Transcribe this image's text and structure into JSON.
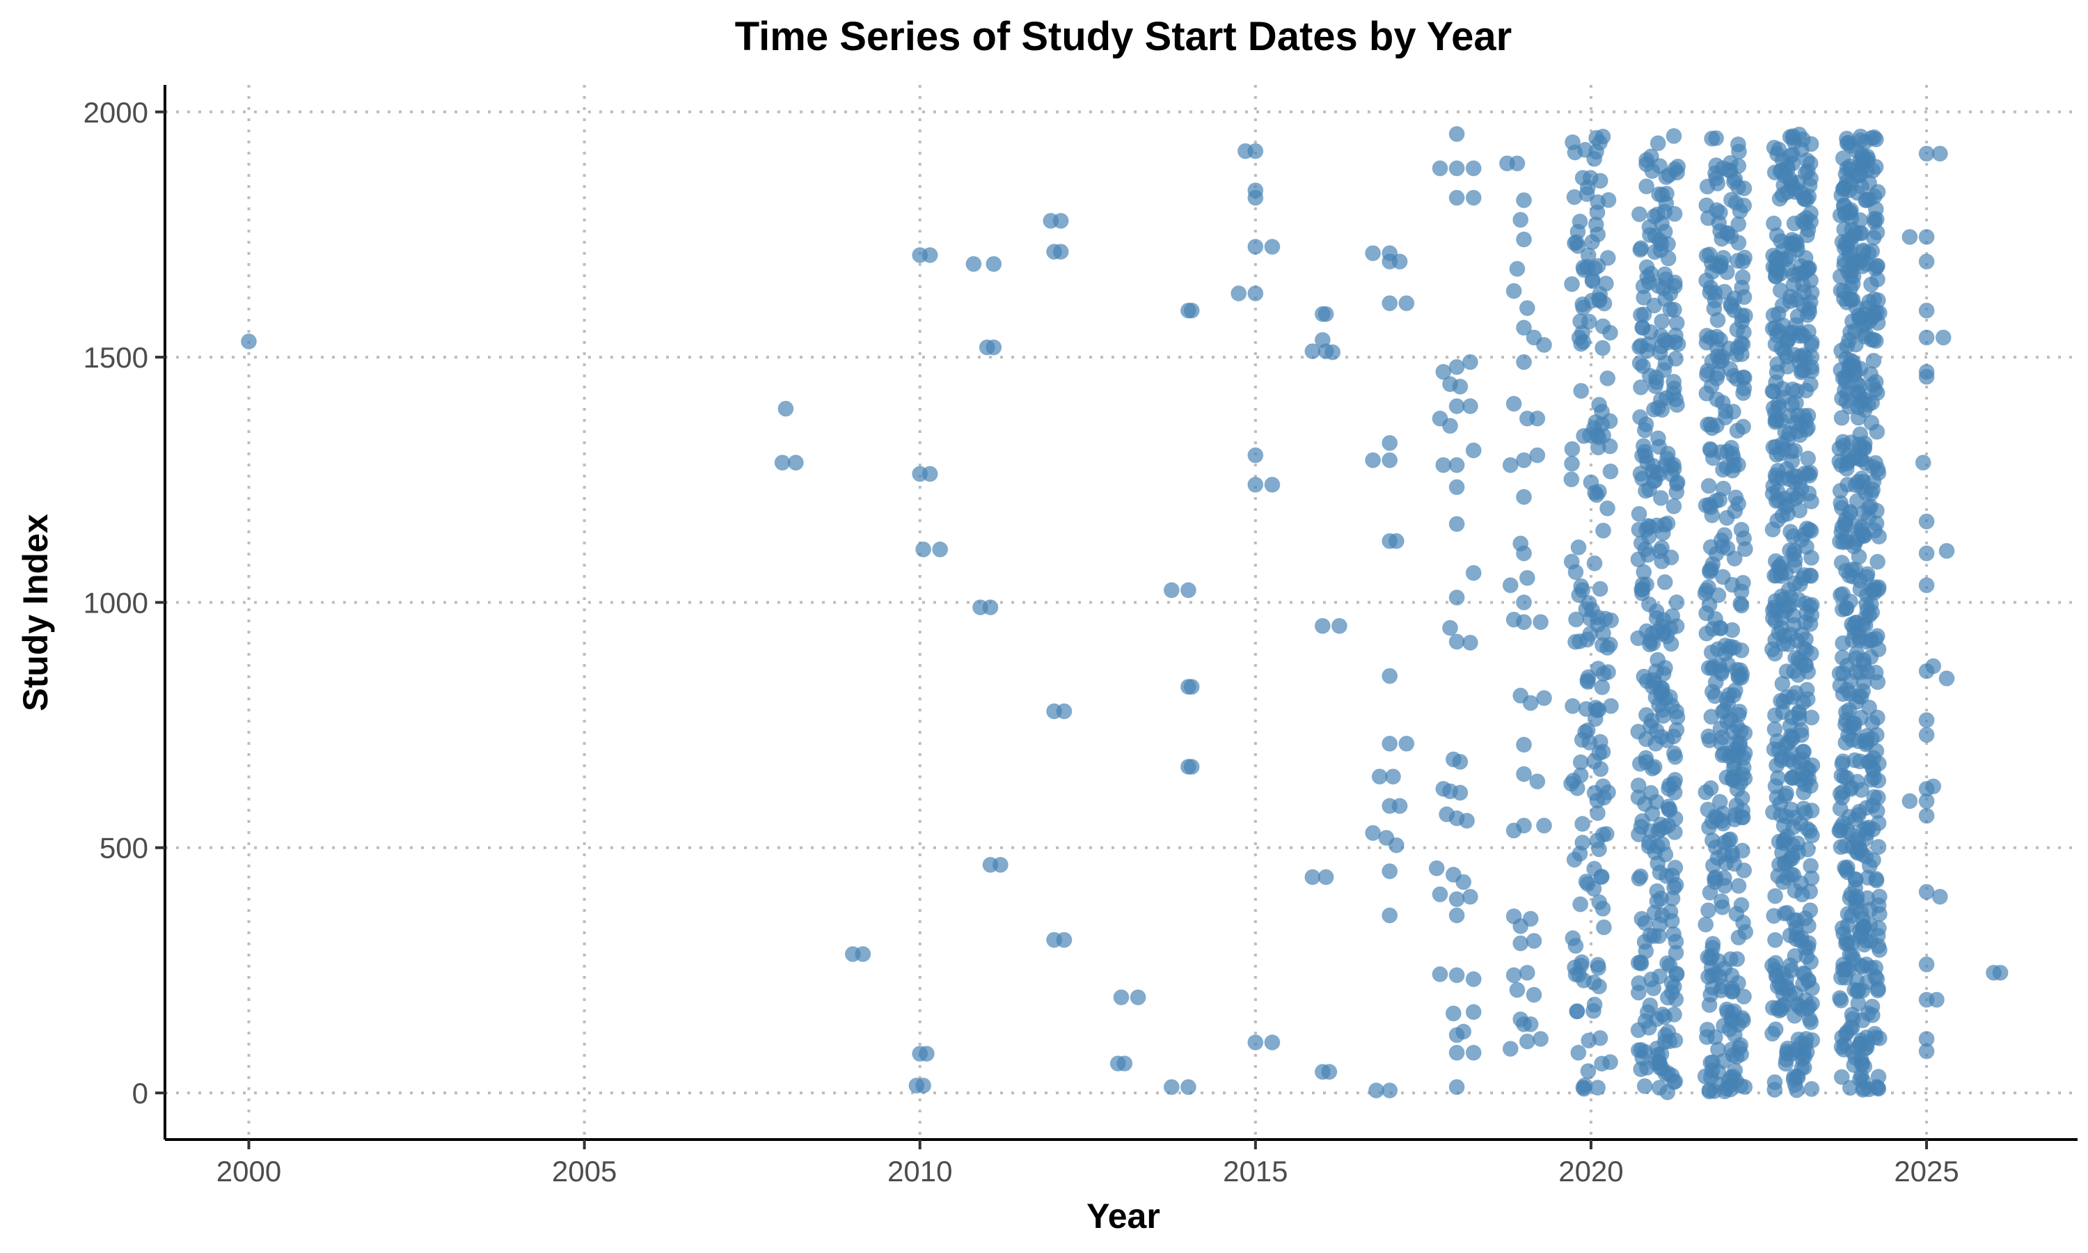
{
  "chart_data": {
    "type": "scatter",
    "title": "Time Series of Study Start Dates by Year",
    "xlabel": "Year",
    "ylabel": "Study Index",
    "xlim": [
      1998.75,
      2027.25
    ],
    "ylim": [
      -95,
      2055
    ],
    "xticks": [
      "2000",
      "2005",
      "2010",
      "2015",
      "2020",
      "2025"
    ],
    "yticks": [
      "0",
      "500",
      "1000",
      "1500",
      "2000"
    ],
    "grid": "major, dotted",
    "legend": "none",
    "marker_color": "#4682B4",
    "points": [
      [
        2000.0,
        1532
      ],
      [
        2008.0,
        1395
      ],
      [
        2007.95,
        1285
      ],
      [
        2008.15,
        1285
      ],
      [
        2009.0,
        283
      ],
      [
        2009.15,
        283
      ],
      [
        2010.0,
        1708
      ],
      [
        2010.15,
        1708
      ],
      [
        2010.0,
        1262
      ],
      [
        2010.15,
        1262
      ],
      [
        2010.05,
        1108
      ],
      [
        2010.3,
        1108
      ],
      [
        2010.0,
        80
      ],
      [
        2010.1,
        80
      ],
      [
        2009.95,
        15
      ],
      [
        2010.05,
        15
      ],
      [
        2010.8,
        1690
      ],
      [
        2011.1,
        1690
      ],
      [
        2011.0,
        1520
      ],
      [
        2011.1,
        1520
      ],
      [
        2010.9,
        990
      ],
      [
        2011.05,
        990
      ],
      [
        2011.05,
        465
      ],
      [
        2011.2,
        465
      ],
      [
        2011.95,
        1778
      ],
      [
        2012.1,
        1778
      ],
      [
        2012.0,
        1715
      ],
      [
        2012.1,
        1715
      ],
      [
        2012.0,
        778
      ],
      [
        2012.15,
        778
      ],
      [
        2012.0,
        312
      ],
      [
        2012.15,
        312
      ],
      [
        2013.0,
        195
      ],
      [
        2013.25,
        195
      ],
      [
        2012.95,
        60
      ],
      [
        2013.05,
        60
      ],
      [
        2013.75,
        1025
      ],
      [
        2014.0,
        1025
      ],
      [
        2014.0,
        1595
      ],
      [
        2014.05,
        1595
      ],
      [
        2014.0,
        828
      ],
      [
        2014.05,
        828
      ],
      [
        2014.0,
        665
      ],
      [
        2014.05,
        665
      ],
      [
        2013.75,
        12
      ],
      [
        2014.0,
        12
      ],
      [
        2014.85,
        1920
      ],
      [
        2015.0,
        1920
      ],
      [
        2015.0,
        1840
      ],
      [
        2015.0,
        1825
      ],
      [
        2015.0,
        1725
      ],
      [
        2015.25,
        1725
      ],
      [
        2014.75,
        1630
      ],
      [
        2015.0,
        1630
      ],
      [
        2015.0,
        1300
      ],
      [
        2015.0,
        1240
      ],
      [
        2015.25,
        1240
      ],
      [
        2015.0,
        103
      ],
      [
        2015.25,
        103
      ],
      [
        2016.0,
        1588
      ],
      [
        2016.05,
        1588
      ],
      [
        2016.0,
        1535
      ],
      [
        2015.85,
        1512
      ],
      [
        2016.05,
        1512
      ],
      [
        2016.15,
        1510
      ],
      [
        2016.0,
        952
      ],
      [
        2016.25,
        952
      ],
      [
        2015.85,
        440
      ],
      [
        2016.05,
        440
      ],
      [
        2016.0,
        43
      ],
      [
        2016.1,
        43
      ],
      [
        2016.75,
        1712
      ],
      [
        2017.0,
        1712
      ],
      [
        2017.0,
        1695
      ],
      [
        2017.15,
        1695
      ],
      [
        2017.0,
        1610
      ],
      [
        2017.25,
        1610
      ],
      [
        2017.0,
        1325
      ],
      [
        2016.75,
        1290
      ],
      [
        2017.0,
        1290
      ],
      [
        2017.0,
        1125
      ],
      [
        2017.1,
        1125
      ],
      [
        2017.0,
        850
      ],
      [
        2017.0,
        712
      ],
      [
        2017.25,
        712
      ],
      [
        2016.85,
        645
      ],
      [
        2017.05,
        645
      ],
      [
        2017.0,
        585
      ],
      [
        2017.15,
        585
      ],
      [
        2016.75,
        530
      ],
      [
        2016.95,
        520
      ],
      [
        2017.1,
        505
      ],
      [
        2017.0,
        452
      ],
      [
        2017.0,
        362
      ],
      [
        2016.8,
        5
      ],
      [
        2017.0,
        5
      ],
      [
        2017.75,
        1885
      ],
      [
        2018.0,
        1955
      ],
      [
        2018.0,
        1885
      ],
      [
        2018.25,
        1885
      ],
      [
        2018.0,
        1825
      ],
      [
        2018.25,
        1825
      ],
      [
        2018.0,
        1480
      ],
      [
        2017.8,
        1470
      ],
      [
        2017.9,
        1445
      ],
      [
        2018.05,
        1440
      ],
      [
        2018.2,
        1490
      ],
      [
        2017.75,
        1375
      ],
      [
        2017.9,
        1360
      ],
      [
        2018.0,
        1400
      ],
      [
        2018.2,
        1400
      ],
      [
        2018.0,
        1280
      ],
      [
        2017.8,
        1280
      ],
      [
        2018.25,
        1310
      ],
      [
        2018.0,
        1235
      ],
      [
        2018.0,
        1160
      ],
      [
        2018.0,
        1010
      ],
      [
        2018.25,
        1060
      ],
      [
        2017.9,
        948
      ],
      [
        2018.0,
        920
      ],
      [
        2018.2,
        918
      ],
      [
        2017.95,
        680
      ],
      [
        2018.05,
        675
      ],
      [
        2017.8,
        620
      ],
      [
        2017.9,
        615
      ],
      [
        2018.05,
        612
      ],
      [
        2017.85,
        568
      ],
      [
        2018.0,
        560
      ],
      [
        2018.15,
        555
      ],
      [
        2017.7,
        458
      ],
      [
        2017.95,
        445
      ],
      [
        2018.1,
        430
      ],
      [
        2017.75,
        405
      ],
      [
        2018.0,
        395
      ],
      [
        2018.2,
        400
      ],
      [
        2018.0,
        362
      ],
      [
        2017.75,
        242
      ],
      [
        2018.0,
        240
      ],
      [
        2018.25,
        232
      ],
      [
        2017.95,
        162
      ],
      [
        2018.0,
        118
      ],
      [
        2018.1,
        125
      ],
      [
        2018.25,
        165
      ],
      [
        2018.0,
        82
      ],
      [
        2018.25,
        82
      ],
      [
        2018.0,
        12
      ],
      [
        2018.75,
        1895
      ],
      [
        2018.9,
        1895
      ],
      [
        2019.0,
        1820
      ],
      [
        2018.95,
        1780
      ],
      [
        2019.0,
        1740
      ],
      [
        2018.9,
        1680
      ],
      [
        2018.85,
        1635
      ],
      [
        2019.05,
        1600
      ],
      [
        2019.0,
        1560
      ],
      [
        2019.15,
        1540
      ],
      [
        2019.3,
        1525
      ],
      [
        2019.0,
        1490
      ],
      [
        2018.85,
        1405
      ],
      [
        2019.05,
        1375
      ],
      [
        2019.2,
        1375
      ],
      [
        2018.8,
        1280
      ],
      [
        2019.0,
        1290
      ],
      [
        2019.2,
        1300
      ],
      [
        2019.0,
        1215
      ],
      [
        2018.95,
        1120
      ],
      [
        2019.0,
        1100
      ],
      [
        2018.8,
        1035
      ],
      [
        2019.05,
        1050
      ],
      [
        2019.0,
        1000
      ],
      [
        2018.85,
        965
      ],
      [
        2019.0,
        960
      ],
      [
        2019.25,
        960
      ],
      [
        2018.95,
        810
      ],
      [
        2019.1,
        795
      ],
      [
        2019.3,
        805
      ],
      [
        2019.0,
        710
      ],
      [
        2019.0,
        650
      ],
      [
        2019.2,
        635
      ],
      [
        2018.85,
        535
      ],
      [
        2019.0,
        545
      ],
      [
        2019.3,
        545
      ],
      [
        2018.85,
        360
      ],
      [
        2018.95,
        340
      ],
      [
        2019.1,
        355
      ],
      [
        2018.95,
        305
      ],
      [
        2019.15,
        310
      ],
      [
        2018.85,
        240
      ],
      [
        2019.05,
        245
      ],
      [
        2018.9,
        210
      ],
      [
        2019.15,
        200
      ],
      [
        2018.95,
        150
      ],
      [
        2019.0,
        140
      ],
      [
        2019.1,
        140
      ],
      [
        2018.8,
        90
      ],
      [
        2019.05,
        105
      ],
      [
        2019.25,
        110
      ],
      [
        2024.75,
        1745
      ],
      [
        2025.0,
        1745
      ],
      [
        2025.0,
        1695
      ],
      [
        2025.0,
        1915
      ],
      [
        2025.2,
        1915
      ],
      [
        2025.0,
        1595
      ],
      [
        2025.0,
        1540
      ],
      [
        2025.25,
        1540
      ],
      [
        2025.0,
        1470
      ],
      [
        2025.0,
        1460
      ],
      [
        2024.95,
        1285
      ],
      [
        2025.0,
        1165
      ],
      [
        2025.0,
        1100
      ],
      [
        2025.3,
        1105
      ],
      [
        2025.0,
        1035
      ],
      [
        2025.0,
        860
      ],
      [
        2025.1,
        870
      ],
      [
        2025.3,
        845
      ],
      [
        2025.0,
        760
      ],
      [
        2025.0,
        730
      ],
      [
        2025.0,
        620
      ],
      [
        2025.1,
        625
      ],
      [
        2024.75,
        595
      ],
      [
        2025.0,
        595
      ],
      [
        2025.0,
        565
      ],
      [
        2025.0,
        410
      ],
      [
        2025.2,
        400
      ],
      [
        2025.0,
        262
      ],
      [
        2025.0,
        190
      ],
      [
        2025.15,
        190
      ],
      [
        2025.0,
        110
      ],
      [
        2025.0,
        85
      ],
      [
        2026.0,
        245
      ],
      [
        2026.1,
        245
      ]
    ],
    "dense_columns": [
      {
        "year": 2020,
        "count": 180,
        "jitter": 0.3
      },
      {
        "year": 2021,
        "count": 320,
        "jitter": 0.3
      },
      {
        "year": 2022,
        "count": 350,
        "jitter": 0.3
      },
      {
        "year": 2023,
        "count": 480,
        "jitter": 0.3
      },
      {
        "year": 2024,
        "count": 520,
        "jitter": 0.3
      }
    ]
  }
}
